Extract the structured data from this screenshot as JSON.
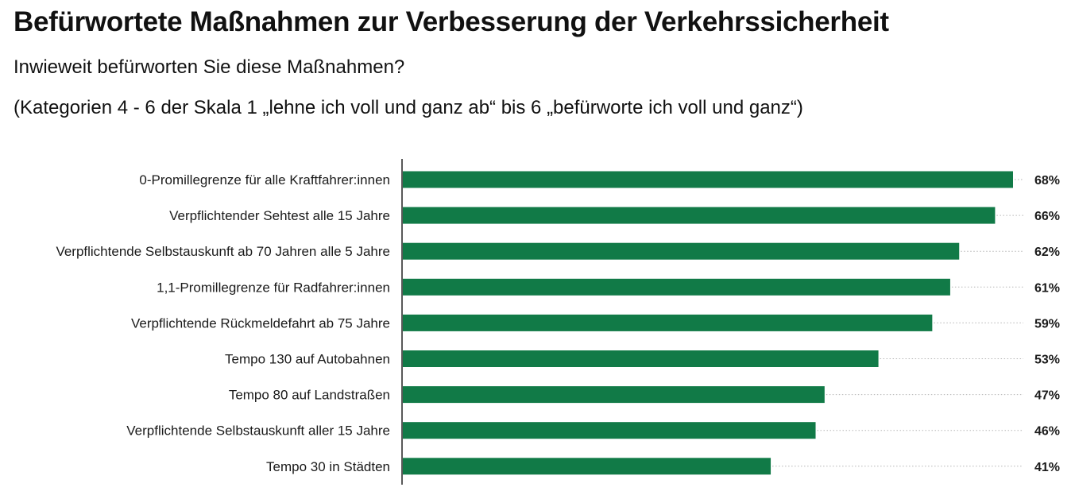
{
  "header": {
    "title": "Befürwortete Maßnahmen zur Verbesserung der Verkehrssicherheit",
    "subtitle_1": "Inwieweit befürworten Sie diese Maßnahmen?",
    "subtitle_2": "(Kategorien 4 - 6 der Skala 1 „lehne ich voll und ganz ab“ bis 6 „befürworte ich voll und ganz“)"
  },
  "chart_data": {
    "type": "bar",
    "orientation": "horizontal",
    "categories": [
      "0-Promillegrenze für alle Kraftfahrer:innen",
      "Verpflichtender Sehtest alle 15 Jahre",
      "Verpflichtende Selbstauskunft ab 70 Jahren alle 5 Jahre",
      "1,1-Promillegrenze für Radfahrer:innen",
      "Verpflichtende Rückmeldefahrt ab 75 Jahre",
      "Tempo 130 auf Autobahnen",
      "Tempo 80 auf Landstraßen",
      "Verpflichtende Selbstauskunft aller 15 Jahre",
      "Tempo 30 in Städten"
    ],
    "values": [
      68,
      66,
      62,
      61,
      59,
      53,
      47,
      46,
      41
    ],
    "value_labels": [
      "68%",
      "66%",
      "62%",
      "61%",
      "59%",
      "53%",
      "47%",
      "46%",
      "41%"
    ],
    "unit": "%",
    "xlim": [
      0,
      68
    ],
    "grid": false,
    "legend": "none",
    "bar_color": "#117a47",
    "leader_line_color": "#b5b5b5"
  }
}
